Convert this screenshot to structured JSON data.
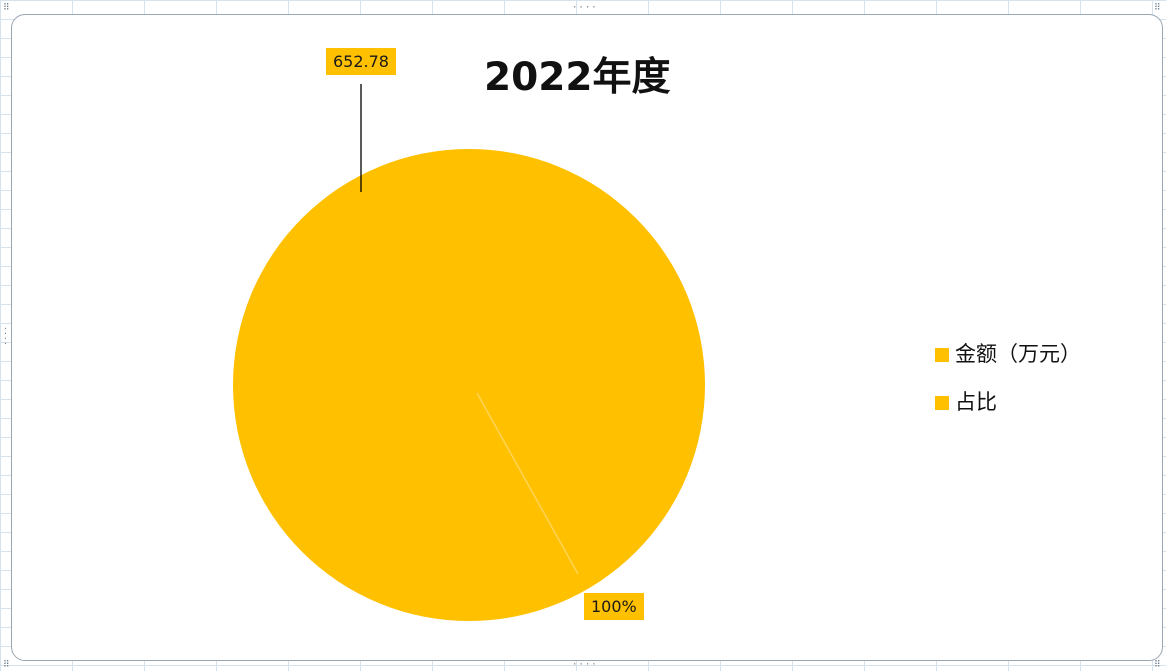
{
  "chart_data": {
    "type": "pie",
    "title": "2022年度",
    "series": [
      {
        "name": "金额（万元）",
        "values": [
          652.78
        ],
        "data_labels": [
          "652.78"
        ]
      },
      {
        "name": "占比",
        "values": [
          1.0
        ],
        "data_labels": [
          "100%"
        ]
      }
    ],
    "legend": {
      "position": "right",
      "entries": [
        "金额（万元）",
        "占比"
      ]
    },
    "colors": {
      "slice": "#ffc000",
      "label_background": "#ffc000",
      "leader_line": "#000000"
    }
  }
}
